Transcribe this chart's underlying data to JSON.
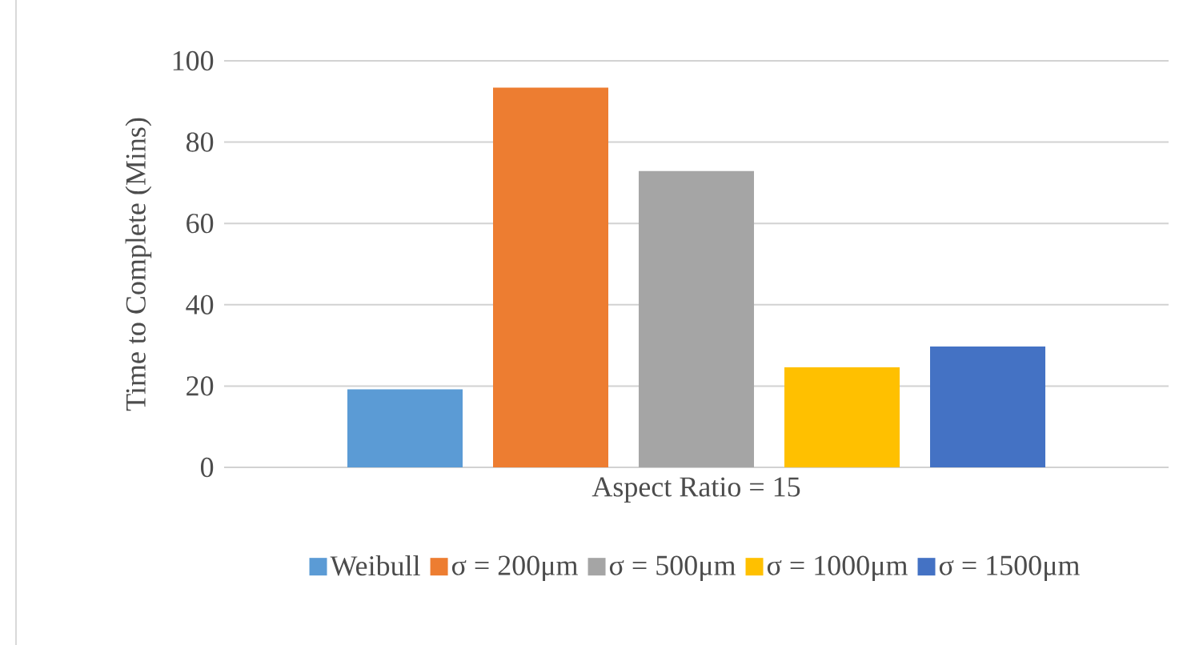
{
  "chart_data": {
    "type": "bar",
    "ylabel": "Time to Complete (Mins)",
    "categories": [
      "Aspect Ratio = 15"
    ],
    "series": [
      {
        "name": "Weibull",
        "color": "#5b9bd5",
        "values": [
          19.2
        ]
      },
      {
        "name": "σ = 200μm",
        "color": "#ed7d31",
        "values": [
          93.4
        ]
      },
      {
        "name": "σ = 500μm",
        "color": "#a5a5a5",
        "values": [
          72.9
        ]
      },
      {
        "name": "σ = 1000μm",
        "color": "#ffc000",
        "values": [
          24.6
        ]
      },
      {
        "name": "σ = 1500μm",
        "color": "#4472c4",
        "values": [
          29.7
        ]
      }
    ],
    "ylim": [
      0,
      100
    ],
    "yticks": [
      0,
      20,
      40,
      60,
      80,
      100
    ],
    "grid": "y",
    "legend": "bottom"
  }
}
